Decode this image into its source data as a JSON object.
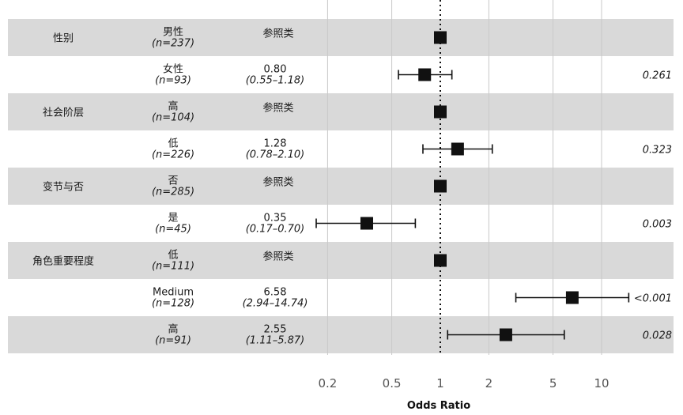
{
  "chart_data": {
    "type": "forest",
    "xlabel": "Odds Ratio",
    "xscale": "log",
    "xlim": [
      0.15,
      19
    ],
    "reference_value": 1,
    "ticks": [
      0.2,
      0.5,
      1,
      2,
      5,
      10
    ],
    "tick_labels": [
      "0.2",
      "0.5",
      "1",
      "2",
      "5",
      "10"
    ],
    "reference_text": "参照类",
    "variables": [
      {
        "name": "性别",
        "levels": [
          {
            "label": "男性",
            "n": "(n=237)",
            "reference": true,
            "or": 1
          },
          {
            "label": "女性",
            "n": "(n=93)",
            "reference": false,
            "or": 0.8,
            "ci_low": 0.55,
            "ci_high": 1.18,
            "or_text": "0.80",
            "ci_text": "(0.55–1.18)",
            "p": "0.261"
          }
        ]
      },
      {
        "name": "社会阶层",
        "levels": [
          {
            "label": "高",
            "n": "(n=104)",
            "reference": true,
            "or": 1
          },
          {
            "label": "低",
            "n": "(n=226)",
            "reference": false,
            "or": 1.28,
            "ci_low": 0.78,
            "ci_high": 2.1,
            "or_text": "1.28",
            "ci_text": "(0.78–2.10)",
            "p": "0.323"
          }
        ]
      },
      {
        "name": "变节与否",
        "levels": [
          {
            "label": "否",
            "n": "(n=285)",
            "reference": true,
            "or": 1
          },
          {
            "label": "是",
            "n": "(n=45)",
            "reference": false,
            "or": 0.35,
            "ci_low": 0.17,
            "ci_high": 0.7,
            "or_text": "0.35",
            "ci_text": "(0.17–0.70)",
            "p": "0.003"
          }
        ]
      },
      {
        "name": "角色重要程度",
        "levels": [
          {
            "label": "低",
            "n": "(n=111)",
            "reference": true,
            "or": 1
          },
          {
            "label": "Medium",
            "n": "(n=128)",
            "reference": false,
            "or": 6.58,
            "ci_low": 2.94,
            "ci_high": 14.74,
            "or_text": "6.58",
            "ci_text": "(2.94–14.74)",
            "p": "<0.001"
          },
          {
            "label": "高",
            "n": "(n=91)",
            "reference": false,
            "or": 2.55,
            "ci_low": 1.11,
            "ci_high": 5.87,
            "or_text": "2.55",
            "ci_text": "(1.11–5.87)",
            "p": "0.028"
          }
        ]
      }
    ]
  }
}
